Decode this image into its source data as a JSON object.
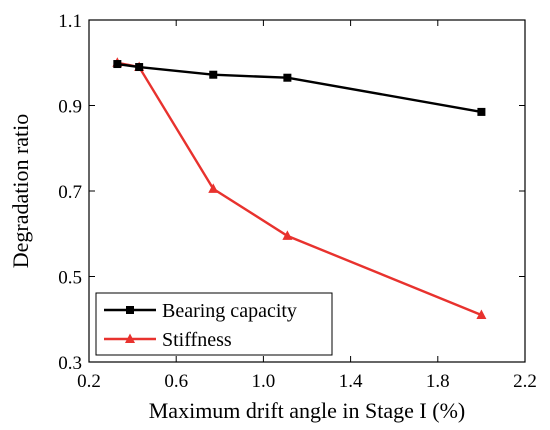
{
  "chart_data": {
    "type": "line",
    "xlabel": "Maximum drift angle in Stage I (%)",
    "ylabel": "Degradation ratio",
    "xlim": [
      0.2,
      2.2
    ],
    "ylim": [
      0.3,
      1.1
    ],
    "xticks": [
      "0.2",
      "0.6",
      "1.0",
      "1.4",
      "1.8",
      "2.2"
    ],
    "yticks": [
      "0.3",
      "0.5",
      "0.7",
      "0.9",
      "1.1"
    ],
    "xtick_values": [
      0.2,
      0.6,
      1.0,
      1.4,
      1.8,
      2.2
    ],
    "ytick_values": [
      0.3,
      0.5,
      0.7,
      0.9,
      1.1
    ],
    "grid": false,
    "legend_position": "bottom-left",
    "series": [
      {
        "name": "Bearing capacity",
        "color": "#000000",
        "marker": "square",
        "x": [
          0.33,
          0.43,
          0.77,
          1.11,
          2.0
        ],
        "y": [
          0.997,
          0.99,
          0.972,
          0.965,
          0.885
        ]
      },
      {
        "name": "Stiffness",
        "color": "#e8322e",
        "marker": "triangle",
        "x": [
          0.33,
          0.43,
          0.77,
          1.11,
          2.0
        ],
        "y": [
          1.0,
          0.99,
          0.705,
          0.595,
          0.41
        ]
      }
    ]
  }
}
